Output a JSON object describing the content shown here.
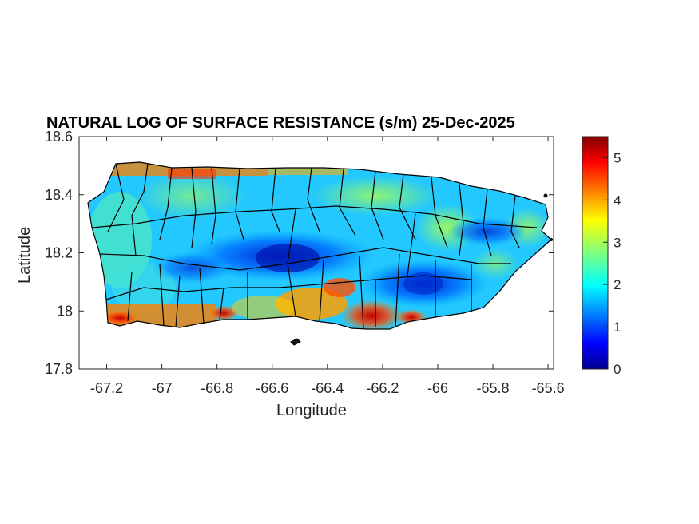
{
  "figure": {
    "title": "NATURAL LOG OF SURFACE RESISTANCE (s/m) 25-Dec-2025",
    "xlabel": "Longitude",
    "ylabel": "Latitude",
    "xlim": [
      -67.3,
      -65.58
    ],
    "ylim": [
      17.8,
      18.6
    ],
    "xticks": [
      "-67.2",
      "-67",
      "-66.8",
      "-66.6",
      "-66.4",
      "-66.2",
      "-66",
      "-65.8",
      "-65.6"
    ],
    "xtick_values": [
      -67.2,
      -67.0,
      -66.8,
      -66.6,
      -66.4,
      -66.2,
      -66.0,
      -65.8,
      -65.6
    ],
    "yticks": [
      "18.6",
      "18.4",
      "18.2",
      "18",
      "17.8"
    ],
    "ytick_values": [
      18.6,
      18.4,
      18.2,
      18.0,
      17.8
    ],
    "colorbar": {
      "colormap": "jet",
      "range": [
        0,
        5.5
      ],
      "ticks": [
        "5",
        "4",
        "3",
        "2",
        "1",
        "0"
      ],
      "tick_values": [
        5,
        4,
        3,
        2,
        1,
        0
      ]
    },
    "map_region": "Puerto Rico municipalities",
    "colors": {
      "dark_blue": "#00008f",
      "blue": "#0050ff",
      "cyan": "#00c8ff",
      "green": "#7fff7f",
      "yellow": "#ffe000",
      "orange": "#ff8000",
      "red": "#e00000",
      "dark_red": "#800000",
      "boundary": "#000000"
    }
  }
}
